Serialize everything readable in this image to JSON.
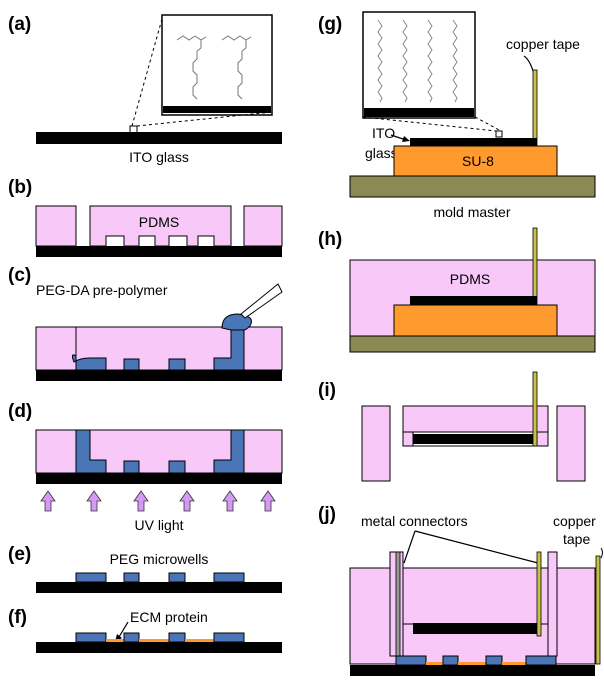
{
  "panels": {
    "a": "(a)",
    "b": "(b)",
    "c": "(c)",
    "d": "(d)",
    "e": "(e)",
    "f": "(f)",
    "g": "(g)",
    "h": "(h)",
    "i": "(i)",
    "j": "(j)"
  },
  "labels": {
    "ito_glass": "ITO glass",
    "pdms": "PDMS",
    "peg_da": "PEG-DA pre-polymer",
    "uv_light": "UV light",
    "peg_microwells": "PEG microwells",
    "ecm_protein": "ECM protein",
    "copper_tape": "copper tape",
    "ito": "ITO",
    "glass": "glass",
    "su8": "SU-8",
    "mold_master": "mold master",
    "metal_connectors": "metal connectors",
    "copper": "copper",
    "tape": "tape"
  },
  "colors": {
    "pdms": "#f8c8f8",
    "peg": "#4a76b8",
    "su8": "#ff9a2e",
    "mold": "#8a8a52",
    "substrate": "#000000",
    "ecm": "#ff9a2e",
    "uv_arrow": "#d49af4"
  }
}
